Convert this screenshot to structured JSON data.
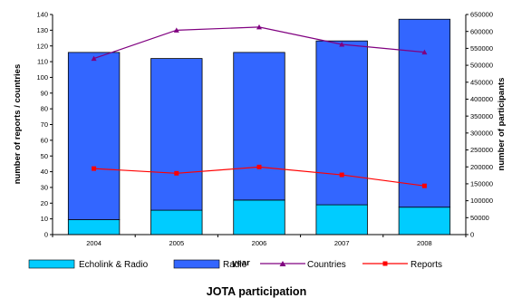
{
  "chart_data": {
    "type": "bar",
    "title": "JOTA participation",
    "xlabel": "year",
    "ylabel_left": "number of reports / countries",
    "ylabel_right": "number of participants",
    "categories": [
      "2004",
      "2005",
      "2006",
      "2007",
      "2008"
    ],
    "ylim_left": [
      0,
      140
    ],
    "yticks_left": [
      "0",
      "10",
      "20",
      "30",
      "40",
      "50",
      "60",
      "70",
      "80",
      "90",
      "100",
      "110",
      "120",
      "130",
      "140"
    ],
    "ylim_right": [
      0,
      650000
    ],
    "yticks_right": [
      "0",
      "50000",
      "100000",
      "150000",
      "200000",
      "250000",
      "300000",
      "350000",
      "400000",
      "450000",
      "500000",
      "550000",
      "600000",
      "650000"
    ],
    "grid": false,
    "legend_position": "bottom",
    "series": [
      {
        "name": "Echolink & Radio",
        "type": "bar",
        "axis": "right",
        "stack": "participants",
        "color": "#00ccff",
        "values": [
          44000,
          72000,
          102000,
          88000,
          81000
        ]
      },
      {
        "name": "Radio",
        "type": "bar",
        "axis": "right",
        "stack": "participants",
        "color": "#3366ff",
        "values": [
          494000,
          448000,
          436000,
          484000,
          555000
        ]
      },
      {
        "name": "Countries",
        "type": "line",
        "axis": "left",
        "color": "#800080",
        "marker": "triangle",
        "values": [
          112,
          130,
          132,
          121,
          116
        ]
      },
      {
        "name": "Reports",
        "type": "line",
        "axis": "left",
        "color": "#ff0000",
        "marker": "square",
        "values": [
          42,
          39,
          43,
          38,
          31
        ]
      }
    ]
  }
}
